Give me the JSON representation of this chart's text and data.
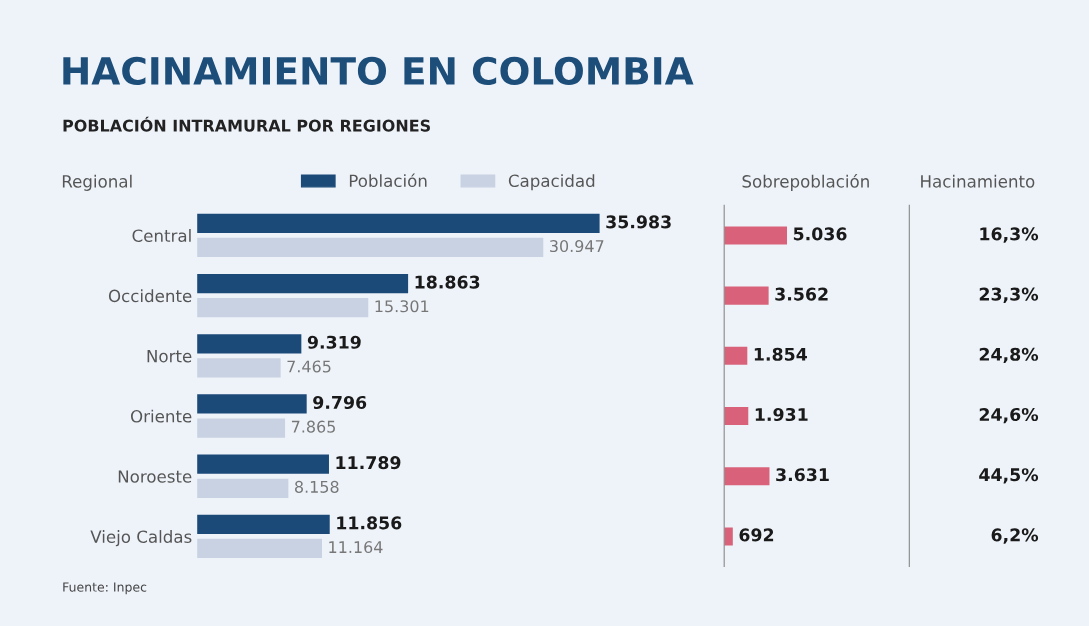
{
  "chart_data": [
    {
      "type": "bar",
      "orientation": "horizontal",
      "title": "HACINAMIENTO EN COLOMBIA",
      "subtitle": "POBLACIÓN INTRAMURAL POR REGIONES",
      "ylabel": "Regional",
      "categories": [
        "Central",
        "Occidente",
        "Norte",
        "Oriente",
        "Noroeste",
        "Viejo Caldas"
      ],
      "series": [
        {
          "name": "Población",
          "color": "#1b4a78",
          "values": [
            35983,
            18863,
            9319,
            9796,
            11789,
            11856
          ],
          "value_labels": [
            "35.983",
            "18.863",
            "9.319",
            "9.796",
            "11.789",
            "11.856"
          ]
        },
        {
          "name": "Capacidad",
          "color": "#c8d2e2",
          "values": [
            30947,
            15301,
            7465,
            7865,
            8158,
            11164
          ],
          "value_labels": [
            "30.947",
            "15.301",
            "7.465",
            "7.865",
            "8.158",
            "11.164"
          ]
        }
      ],
      "legend": "top",
      "grid": false,
      "tick_labels": "y",
      "annotations": [
        "Fuente: Inpec"
      ]
    },
    {
      "type": "bar",
      "orientation": "horizontal",
      "title": "Sobrepoblación",
      "categories": [
        null,
        null,
        null,
        null,
        null,
        null
      ],
      "series": [
        {
          "color": "#d9627a",
          "values": [
            5036,
            3562,
            1854,
            1931,
            3631,
            692
          ],
          "value_labels": [
            "5.036",
            "3.562",
            "1.854",
            "1.931",
            "3.631",
            "692"
          ]
        }
      ],
      "grid": false,
      "tick_labels": false
    },
    {
      "type": "other",
      "title": "Hacinamiento",
      "annotations": [
        "16,3%",
        "23,3%",
        "24,8%",
        "24,6%",
        "44,5%",
        "6,2%"
      ]
    }
  ]
}
